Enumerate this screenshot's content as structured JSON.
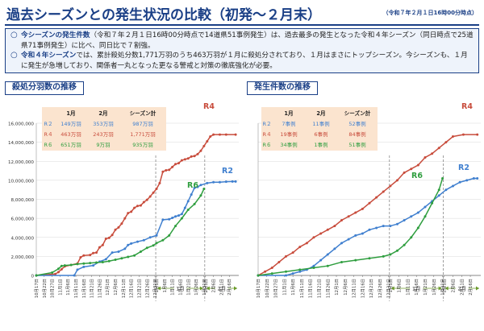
{
  "header": {
    "title": "過去シーズンとの発生状況の比較（初発～２月末）",
    "timestamp": "（令和７年２月１日16時00分時点）"
  },
  "summary": {
    "line1_label": "今シーズンの発生件数",
    "line1_text": "（令和７年２月１日16時00分時点で14道県51事例発生）は、過去最多の発生となった令和４年シーズン（同日時点で25道県71事例発生）に比べ、同日比で７割強。",
    "line2_label": "令和４年シーズン",
    "line2_text": "では、累計殺処分数1,771万羽のうち463万羽が１月に殺処分されており、１月はまさにトップシーズン。今シーズンも、１月に発生が急増しており、関係者一丸となった更なる警戒と対策の徹底強化が必要。"
  },
  "colors": {
    "r2": "#3f7fcf",
    "r4": "#c84c3c",
    "r6": "#2f9e3f",
    "grid": "#d8d8d8",
    "table_bg": "#fbe4cf"
  },
  "chart_data": [
    {
      "type": "line",
      "title": "殺処分羽数の推移",
      "ylim": [
        0,
        16000000
      ],
      "yticks": [
        0,
        2000000,
        4000000,
        6000000,
        8000000,
        10000000,
        12000000,
        14000000,
        16000000
      ],
      "ytick_labels": [
        "0",
        "2,000,000",
        "4,000,000",
        "6,000,000",
        "8,000,000",
        "10,000,000",
        "12,000,000",
        "14,000,000",
        "16,000,000"
      ],
      "xlim": [
        0,
        128
      ],
      "xticks": [
        0,
        5,
        10,
        15,
        20,
        25,
        30,
        35,
        40,
        45,
        50,
        55,
        60,
        65,
        70,
        75,
        76,
        81,
        86,
        91,
        96,
        101,
        106,
        107,
        112,
        117,
        122
      ],
      "xtick_labels": [
        "10月17日",
        "10月22日",
        "10月27日",
        "11月1日",
        "11月6日",
        "11月11日",
        "11月16日",
        "11月21日",
        "11月26日",
        "12月1日",
        "12月6日",
        "12月11日",
        "12月16日",
        "12月21日",
        "12月26日",
        "12月31日",
        "1月1日",
        "1月6日",
        "1月11日",
        "1月16日",
        "1月21日",
        "1月26日",
        "1月31日",
        "2月1日",
        "2月6日",
        "2月11日",
        "2月16日"
      ],
      "period_labels": [
        "1月",
        "2月"
      ],
      "series": [
        {
          "name": "R4",
          "label": "R4",
          "x": [
            0,
            12,
            14,
            16,
            18,
            22,
            26,
            28,
            30,
            34,
            36,
            38,
            40,
            42,
            44,
            46,
            48,
            50,
            52,
            54,
            56,
            58,
            60,
            62,
            64,
            66,
            68,
            70,
            72,
            74,
            76,
            78,
            80,
            82,
            84,
            86,
            88,
            90,
            92,
            94,
            96,
            98,
            100,
            102,
            104,
            106,
            108,
            110,
            112,
            116,
            120,
            126
          ],
          "values": [
            0,
            150000,
            350000,
            650000,
            950000,
            1100000,
            1250000,
            1900000,
            2100000,
            2150000,
            2350000,
            2400000,
            2950000,
            3200000,
            3850000,
            3950000,
            4250000,
            4800000,
            5050000,
            5450000,
            6000000,
            6550000,
            6700000,
            7100000,
            7300000,
            7350000,
            7700000,
            7950000,
            8300000,
            8700000,
            9100000,
            9700000,
            10900000,
            11050000,
            11100000,
            11400000,
            11700000,
            11800000,
            12100000,
            12200000,
            12300000,
            12500000,
            12550000,
            12750000,
            13100000,
            13600000,
            14100000,
            14600000,
            14800000,
            14800000,
            14800000,
            14800000
          ]
        },
        {
          "name": "R2",
          "label": "R2",
          "x": [
            0,
            24,
            26,
            30,
            36,
            40,
            44,
            48,
            52,
            56,
            58,
            60,
            64,
            68,
            72,
            76,
            80,
            84,
            86,
            88,
            90,
            92,
            94,
            96,
            98,
            100,
            102,
            104,
            108,
            112,
            116,
            120,
            124,
            126
          ],
          "values": [
            0,
            0,
            600000,
            900000,
            1050000,
            1450000,
            1700000,
            2400000,
            2500000,
            2800000,
            3200000,
            3350000,
            3550000,
            3700000,
            4000000,
            4200000,
            5850000,
            5900000,
            6050000,
            6200000,
            6300000,
            6450000,
            7100000,
            7800000,
            8500000,
            9200000,
            9300000,
            9500000,
            9700000,
            9800000,
            9800000,
            9850000,
            9870000,
            9870000
          ]
        },
        {
          "name": "R6",
          "label": "R6",
          "x": [
            0,
            10,
            14,
            16,
            18,
            22,
            26,
            30,
            34,
            38,
            42,
            46,
            50,
            54,
            58,
            62,
            66,
            70,
            74,
            76,
            80,
            84,
            88,
            92,
            96,
            100,
            104,
            106
          ],
          "values": [
            0,
            300000,
            700000,
            1000000,
            1050000,
            1100000,
            1200000,
            1250000,
            1300000,
            1350000,
            1400000,
            1500000,
            1650000,
            1800000,
            1950000,
            2100000,
            2500000,
            2900000,
            3150000,
            3400000,
            3700000,
            4200000,
            5200000,
            6000000,
            6900000,
            7500000,
            8400000,
            9100000
          ]
        }
      ],
      "table": {
        "headers": [
          "",
          "1月",
          "2月",
          "シーズン計"
        ],
        "rows": [
          [
            "R２",
            "149万羽",
            "353万羽",
            "987万羽"
          ],
          [
            "R４",
            "463万羽",
            "243万羽",
            "1,771万羽"
          ],
          [
            "R６",
            "651万羽",
            "9万羽",
            "935万羽"
          ]
        ]
      }
    },
    {
      "type": "line",
      "title": "発生件数の推移",
      "ylim": [
        0,
        80
      ],
      "xlim": [
        0,
        128
      ],
      "xticks": [
        0,
        5,
        10,
        15,
        20,
        25,
        30,
        35,
        40,
        45,
        50,
        55,
        60,
        65,
        70,
        75,
        76,
        81,
        86,
        91,
        96,
        101,
        106,
        107,
        112,
        117,
        122
      ],
      "xtick_labels": [
        "10月17日",
        "10月22日",
        "10月27日",
        "11月1日",
        "11月6日",
        "11月11日",
        "11月16日",
        "11月21日",
        "11月26日",
        "12月1日",
        "12月6日",
        "12月11日",
        "12月16日",
        "12月21日",
        "12月26日",
        "12月31日",
        "1月1日",
        "1月6日",
        "1月11日",
        "1月16日",
        "1月21日",
        "1月26日",
        "1月31日",
        "2月1日",
        "2月6日",
        "2月11日",
        "2月16日"
      ],
      "period_labels": [
        "1月",
        "2月"
      ],
      "series": [
        {
          "name": "R4",
          "label": "R4",
          "x": [
            0,
            4,
            8,
            12,
            16,
            20,
            24,
            28,
            32,
            36,
            40,
            44,
            48,
            52,
            56,
            60,
            64,
            68,
            72,
            76,
            80,
            84,
            88,
            92,
            96,
            100,
            104,
            108,
            112,
            118,
            126
          ],
          "values": [
            0,
            2,
            4,
            7,
            10,
            12,
            15,
            17,
            20,
            22,
            24,
            26,
            29,
            31,
            33,
            35,
            38,
            41,
            44,
            47,
            50,
            54,
            56,
            58,
            62,
            64,
            67,
            70,
            73,
            74,
            74
          ]
        },
        {
          "name": "R2",
          "label": "R2",
          "x": [
            0,
            16,
            20,
            24,
            28,
            32,
            36,
            40,
            44,
            48,
            52,
            56,
            60,
            64,
            68,
            72,
            76,
            80,
            84,
            88,
            92,
            96,
            100,
            104,
            108,
            112,
            116,
            120,
            124,
            126
          ],
          "values": [
            0,
            0,
            1,
            2,
            3,
            5,
            8,
            11,
            14,
            17,
            19,
            21,
            22,
            24,
            25,
            26,
            26,
            27,
            29,
            31,
            33,
            36,
            39,
            42,
            45,
            47,
            49,
            50,
            51,
            51
          ]
        },
        {
          "name": "R6",
          "label": "R6",
          "x": [
            0,
            8,
            16,
            24,
            32,
            40,
            48,
            56,
            64,
            72,
            76,
            80,
            84,
            88,
            92,
            96,
            100,
            104,
            106
          ],
          "values": [
            0,
            1,
            2,
            3,
            4,
            5,
            7,
            8,
            9,
            10,
            11,
            13,
            16,
            20,
            25,
            31,
            38,
            45,
            51
          ]
        }
      ],
      "table": {
        "headers": [
          "",
          "1月",
          "2月",
          "シーズン計"
        ],
        "rows": [
          [
            "R２",
            "7事例",
            "11事例",
            "52事例"
          ],
          [
            "R４",
            "19事例",
            "6事例",
            "84事例"
          ],
          [
            "R６",
            "34事例",
            "1事例",
            "51事例"
          ]
        ]
      }
    }
  ]
}
